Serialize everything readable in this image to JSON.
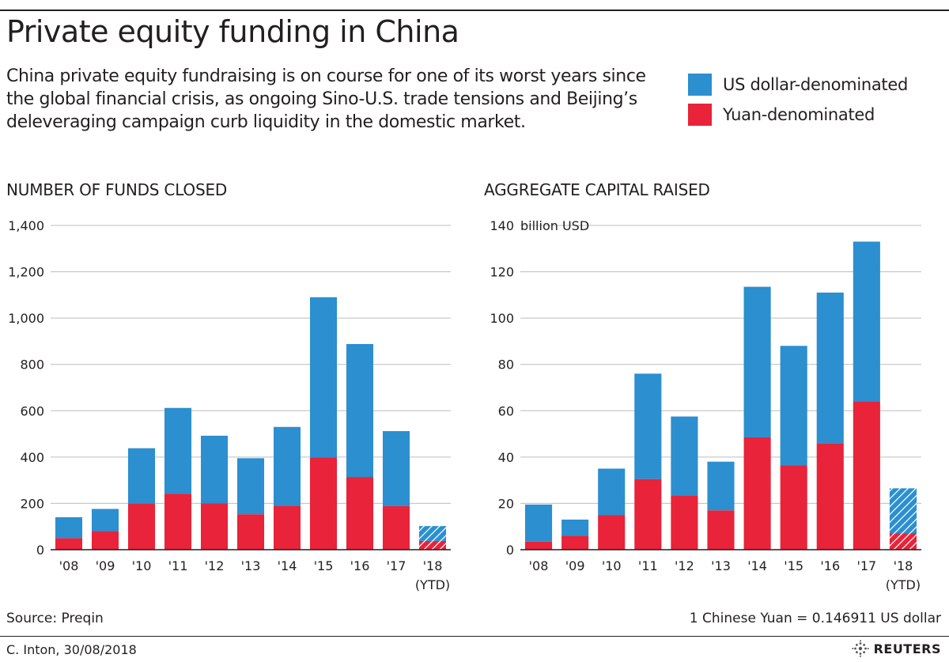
{
  "header": {
    "title": "Private equity funding in China",
    "subtitle": "China private equity fundraising is on course for one of its worst years since the global financial crisis, as ongoing Sino-U.S. trade tensions and Beijing’s deleveraging campaign curb liquidity in the domestic market."
  },
  "legend": {
    "usd_label": "US dollar-denominated",
    "yuan_label": "Yuan-denominated"
  },
  "colors": {
    "usd": "#2b8fd0",
    "yuan": "#e8233a",
    "grid": "#bdbdbd",
    "axis": "#231f20"
  },
  "chart_data": [
    {
      "type": "bar",
      "stacked": true,
      "title": "NUMBER OF FUNDS CLOSED",
      "unit_label": "",
      "categories": [
        "'08",
        "'09",
        "'10",
        "'11",
        "'12",
        "'13",
        "'14",
        "'15",
        "'16",
        "'17",
        "'18"
      ],
      "category_sub": [
        "",
        "",
        "",
        "",
        "",
        "",
        "",
        "",
        "",
        "",
        "(YTD)"
      ],
      "ylim": [
        0,
        1400
      ],
      "yticks": [
        0,
        200,
        400,
        600,
        800,
        1000,
        1200,
        1400
      ],
      "ytick_labels": [
        "0",
        "200",
        "400",
        "600",
        "800",
        "1,000",
        "1,200",
        "1,400"
      ],
      "grid": true,
      "hatched_last": true,
      "series": [
        {
          "name": "Yuan-denominated",
          "color": "#e8233a",
          "values": [
            50,
            80,
            198,
            242,
            200,
            153,
            190,
            398,
            314,
            188,
            38
          ]
        },
        {
          "name": "US dollar-denominated",
          "color": "#2b8fd0",
          "values": [
            90,
            96,
            240,
            370,
            292,
            242,
            340,
            692,
            574,
            324,
            64
          ]
        }
      ]
    },
    {
      "type": "bar",
      "stacked": true,
      "title": "AGGREGATE CAPITAL RAISED",
      "unit_label": "billion USD",
      "categories": [
        "'08",
        "'09",
        "'10",
        "'11",
        "'12",
        "'13",
        "'14",
        "'15",
        "'16",
        "'17",
        "'18"
      ],
      "category_sub": [
        "",
        "",
        "",
        "",
        "",
        "",
        "",
        "",
        "",
        "",
        "(YTD)"
      ],
      "ylim": [
        0,
        140
      ],
      "yticks": [
        0,
        20,
        40,
        60,
        80,
        100,
        120,
        140
      ],
      "ytick_labels": [
        "0",
        "20",
        "40",
        "60",
        "80",
        "100",
        "120",
        "140"
      ],
      "grid": true,
      "hatched_last": true,
      "series": [
        {
          "name": "Yuan-denominated",
          "color": "#e8233a",
          "values": [
            3.5,
            6,
            15,
            30.5,
            23.5,
            17,
            48.5,
            36.5,
            46,
            64,
            7
          ]
        },
        {
          "name": "US dollar-denominated",
          "color": "#2b8fd0",
          "values": [
            16,
            7,
            20,
            45.5,
            34,
            21,
            65,
            51.5,
            65,
            69,
            19.5
          ]
        }
      ]
    }
  ],
  "footer": {
    "source": "Source: Preqin",
    "conversion": "1 Chinese Yuan = 0.146911 US dollar",
    "credit": "C. Inton,  30/08/2018",
    "brand": "REUTERS"
  }
}
